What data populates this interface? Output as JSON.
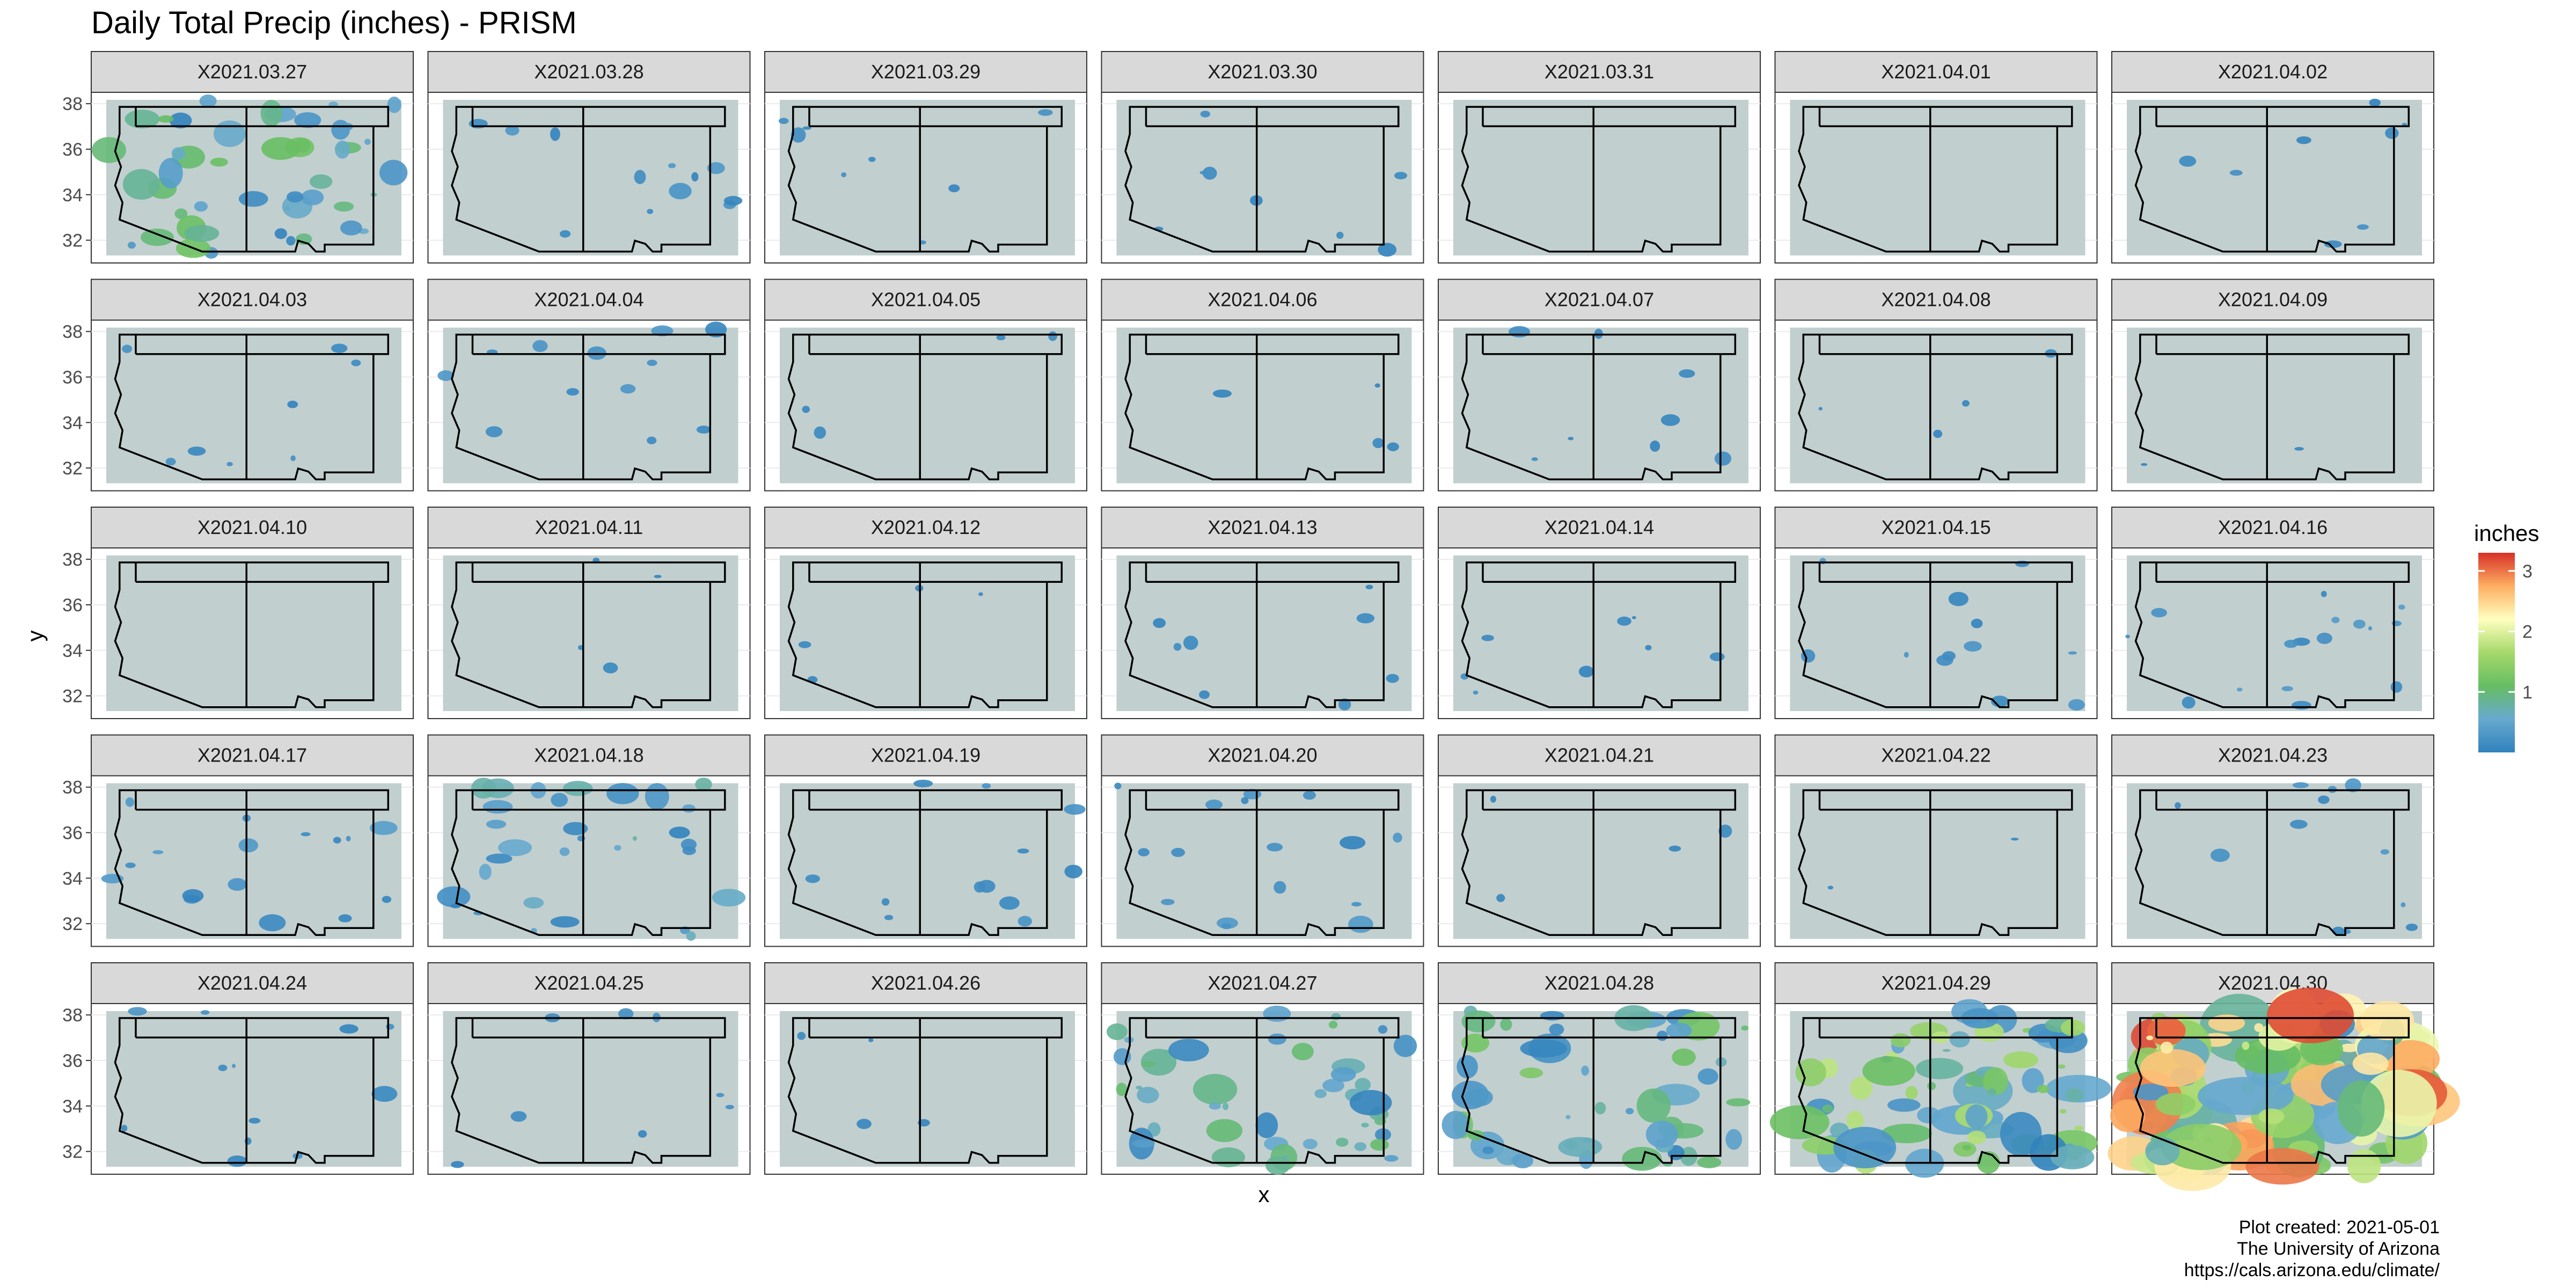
{
  "chart_data": {
    "type": "heatmap",
    "title": "Daily Total Precip (inches) - PRISM",
    "xlabel": "x",
    "ylabel": "y",
    "y_ticks": [
      32,
      34,
      36,
      38
    ],
    "ylim": [
      31,
      38.5
    ],
    "grid": true,
    "facet_layout": {
      "columns": 7,
      "rows": 5
    },
    "legend": {
      "title": "inches",
      "ticks": [
        1,
        2,
        3
      ],
      "range": [
        0,
        3.3
      ],
      "position": "right",
      "colors": [
        "#3182bd",
        "#67a9cf",
        "#66bd63",
        "#a6d96a",
        "#ffffbf",
        "#fdae61",
        "#d73027"
      ]
    },
    "colors": {
      "panel_fill": "#c2cfcf",
      "strip_fill": "#d9d9d9",
      "border": "#000000"
    },
    "panels": [
      {
        "label": "X2021.03.27",
        "max_precip": 1.2
      },
      {
        "label": "X2021.03.28",
        "max_precip": 0.3
      },
      {
        "label": "X2021.03.29",
        "max_precip": 0.2
      },
      {
        "label": "X2021.03.30",
        "max_precip": 0.2
      },
      {
        "label": "X2021.03.31",
        "max_precip": 0
      },
      {
        "label": "X2021.04.01",
        "max_precip": 0
      },
      {
        "label": "X2021.04.02",
        "max_precip": 0.2
      },
      {
        "label": "X2021.04.03",
        "max_precip": 0.2
      },
      {
        "label": "X2021.04.04",
        "max_precip": 0.3
      },
      {
        "label": "X2021.04.05",
        "max_precip": 0.1
      },
      {
        "label": "X2021.04.06",
        "max_precip": 0.1
      },
      {
        "label": "X2021.04.07",
        "max_precip": 0.2
      },
      {
        "label": "X2021.04.08",
        "max_precip": 0.1
      },
      {
        "label": "X2021.04.09",
        "max_precip": 0.05
      },
      {
        "label": "X2021.04.10",
        "max_precip": 0
      },
      {
        "label": "X2021.04.11",
        "max_precip": 0.1
      },
      {
        "label": "X2021.04.12",
        "max_precip": 0.1
      },
      {
        "label": "X2021.04.13",
        "max_precip": 0.2
      },
      {
        "label": "X2021.04.14",
        "max_precip": 0.2
      },
      {
        "label": "X2021.04.15",
        "max_precip": 0.3
      },
      {
        "label": "X2021.04.16",
        "max_precip": 0.4
      },
      {
        "label": "X2021.04.17",
        "max_precip": 0.4
      },
      {
        "label": "X2021.04.18",
        "max_precip": 0.8
      },
      {
        "label": "X2021.04.19",
        "max_precip": 0.3
      },
      {
        "label": "X2021.04.20",
        "max_precip": 0.4
      },
      {
        "label": "X2021.04.21",
        "max_precip": 0.1
      },
      {
        "label": "X2021.04.22",
        "max_precip": 0.05
      },
      {
        "label": "X2021.04.23",
        "max_precip": 0.3
      },
      {
        "label": "X2021.04.24",
        "max_precip": 0.3
      },
      {
        "label": "X2021.04.25",
        "max_precip": 0.2
      },
      {
        "label": "X2021.04.26",
        "max_precip": 0.1
      },
      {
        "label": "X2021.04.27",
        "max_precip": 1.2
      },
      {
        "label": "X2021.04.28",
        "max_precip": 1.3
      },
      {
        "label": "X2021.04.29",
        "max_precip": 1.8
      },
      {
        "label": "X2021.04.30",
        "max_precip": 3.2
      }
    ]
  },
  "caption": {
    "line1": "Plot created: 2021-05-01",
    "line2": "The University of Arizona",
    "line3": "https://cals.arizona.edu/climate/"
  }
}
